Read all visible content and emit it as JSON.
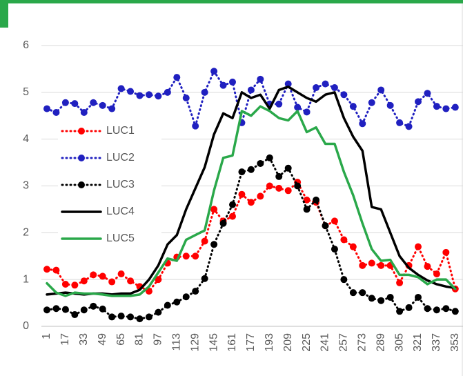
{
  "chart_data": {
    "type": "line",
    "categories": [
      "1",
      null,
      "17",
      null,
      "33",
      null,
      "49",
      null,
      "65",
      null,
      "81",
      null,
      "97",
      null,
      "113",
      null,
      "129",
      null,
      "145",
      null,
      "161",
      null,
      "177",
      null,
      "193",
      null,
      "209",
      null,
      "225",
      null,
      "241",
      null,
      "257",
      null,
      "273",
      null,
      "289",
      null,
      "305",
      null,
      "321",
      null,
      "337",
      null,
      "353"
    ],
    "ylim": [
      0,
      6
    ],
    "yticks": [
      0,
      1,
      2,
      3,
      4,
      5,
      6
    ],
    "grid": true,
    "legend": "left",
    "series": [
      {
        "name": "LUC1",
        "color": "#ff0000",
        "line_style": "dotted",
        "marker": true,
        "values": [
          1.22,
          1.2,
          0.9,
          0.88,
          0.97,
          1.1,
          1.07,
          0.95,
          1.12,
          0.97,
          0.85,
          0.75,
          1.0,
          1.35,
          1.48,
          1.5,
          1.5,
          1.82,
          2.5,
          2.25,
          2.35,
          2.82,
          2.65,
          2.78,
          3.0,
          2.95,
          2.9,
          3.08,
          2.7,
          2.65,
          2.15,
          2.25,
          1.85,
          1.7,
          1.3,
          1.35,
          1.3,
          1.3,
          0.93,
          1.3,
          1.7,
          1.28,
          1.12,
          1.58,
          0.8
        ]
      },
      {
        "name": "LUC2",
        "color": "#2020c0",
        "line_style": "dotted",
        "marker": true,
        "values": [
          4.65,
          4.57,
          4.78,
          4.76,
          4.57,
          4.78,
          4.72,
          4.65,
          5.08,
          5.02,
          4.93,
          4.95,
          4.92,
          5.0,
          5.32,
          4.88,
          4.28,
          5.0,
          5.45,
          5.15,
          5.22,
          4.35,
          5.05,
          5.28,
          4.75,
          4.75,
          5.18,
          4.68,
          4.58,
          5.1,
          5.18,
          5.1,
          4.95,
          4.7,
          4.33,
          4.78,
          5.05,
          4.72,
          4.35,
          4.27,
          4.8,
          4.98,
          4.7,
          4.65,
          4.68
        ]
      },
      {
        "name": "LUC3",
        "color": "#000000",
        "line_style": "dotted",
        "marker": true,
        "values": [
          0.35,
          0.38,
          0.36,
          0.25,
          0.35,
          0.43,
          0.37,
          0.2,
          0.22,
          0.2,
          0.16,
          0.2,
          0.3,
          0.45,
          0.52,
          0.63,
          0.75,
          1.02,
          1.75,
          2.2,
          2.6,
          3.3,
          3.35,
          3.48,
          3.6,
          3.2,
          3.38,
          3.0,
          2.5,
          2.7,
          2.15,
          1.65,
          1.0,
          0.72,
          0.72,
          0.6,
          0.55,
          0.62,
          0.32,
          0.4,
          0.62,
          0.38,
          0.35,
          0.38,
          0.32
        ]
      },
      {
        "name": "LUC4",
        "color": "#000000",
        "line_style": "solid",
        "marker": false,
        "values": [
          0.68,
          0.7,
          0.72,
          0.7,
          0.68,
          0.7,
          0.7,
          0.68,
          0.7,
          0.7,
          0.78,
          1.0,
          1.3,
          1.75,
          1.95,
          2.5,
          2.95,
          3.4,
          4.1,
          4.55,
          4.45,
          5.0,
          4.88,
          4.95,
          4.65,
          5.05,
          5.12,
          5.0,
          4.88,
          4.8,
          4.95,
          5.0,
          4.45,
          4.05,
          3.75,
          2.55,
          2.5,
          2.0,
          1.5,
          1.25,
          1.1,
          0.98,
          0.9,
          0.85,
          0.82
        ]
      },
      {
        "name": "LUC5",
        "color": "#2aa84a",
        "line_style": "solid",
        "marker": false,
        "values": [
          0.92,
          0.72,
          0.65,
          0.72,
          0.7,
          0.7,
          0.68,
          0.65,
          0.65,
          0.65,
          0.68,
          0.85,
          1.15,
          1.45,
          1.4,
          1.85,
          1.95,
          2.05,
          2.9,
          3.6,
          3.65,
          4.6,
          4.5,
          4.7,
          4.6,
          4.45,
          4.4,
          4.6,
          4.15,
          4.25,
          3.9,
          3.9,
          3.3,
          2.8,
          2.2,
          1.65,
          1.4,
          1.42,
          1.1,
          1.1,
          1.05,
          0.9,
          1.0,
          1.0,
          0.8
        ]
      }
    ]
  }
}
